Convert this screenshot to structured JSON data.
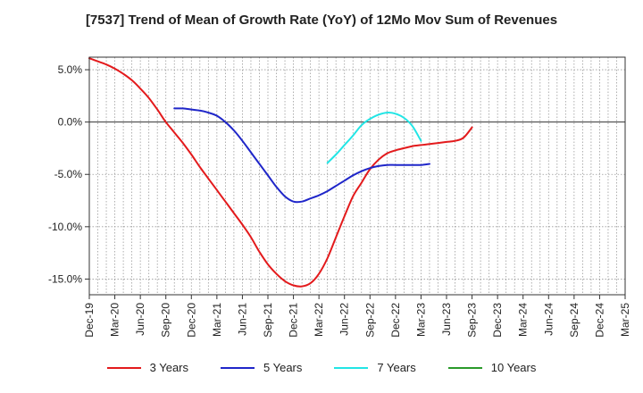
{
  "chart_data": {
    "type": "line",
    "title": "[7537]  Trend of Mean of Growth Rate (YoY) of 12Mo Mov Sum of Revenues",
    "xlabel": "",
    "ylabel": "",
    "x_ticks": [
      "Dec-19",
      "Mar-20",
      "Jun-20",
      "Sep-20",
      "Dec-20",
      "Mar-21",
      "Jun-21",
      "Sep-21",
      "Dec-21",
      "Mar-22",
      "Jun-22",
      "Sep-22",
      "Dec-22",
      "Mar-23",
      "Jun-23",
      "Sep-23",
      "Dec-23",
      "Mar-24",
      "Jun-24",
      "Sep-24",
      "Dec-24",
      "Mar-25"
    ],
    "y_ticks": [
      "5.0%",
      "0.0%",
      "-5.0%",
      "-10.0%",
      "-15.0%"
    ],
    "y_tick_values": [
      5,
      0,
      -5,
      -10,
      -15
    ],
    "ylim": [
      -16.5,
      6.2
    ],
    "grid": true,
    "legend_position": "bottom",
    "series": [
      {
        "name": "3 Years",
        "color": "#e31a1c",
        "start_index": 0,
        "values": [
          6.1,
          5.8,
          5.5,
          5.1,
          4.6,
          4.0,
          3.2,
          2.3,
          1.2,
          0.0,
          -1.0,
          -2.0,
          -3.1,
          -4.3,
          -5.4,
          -6.5,
          -7.6,
          -8.7,
          -9.8,
          -11.0,
          -12.4,
          -13.6,
          -14.5,
          -15.2,
          -15.6,
          -15.7,
          -15.4,
          -14.5,
          -13.0,
          -11.0,
          -9.0,
          -7.1,
          -5.8,
          -4.5,
          -3.6,
          -3.0,
          -2.7,
          -2.5,
          -2.3,
          -2.2,
          -2.1,
          -2.0,
          -1.9,
          -1.8,
          -1.5,
          -0.5
        ]
      },
      {
        "name": "5 Years",
        "color": "#1f26c9",
        "start_index": 10,
        "values": [
          1.3,
          1.3,
          1.2,
          1.1,
          0.9,
          0.6,
          0.0,
          -0.8,
          -1.8,
          -2.9,
          -4.0,
          -5.1,
          -6.2,
          -7.1,
          -7.6,
          -7.6,
          -7.3,
          -7.0,
          -6.6,
          -6.1,
          -5.6,
          -5.1,
          -4.7,
          -4.4,
          -4.2,
          -4.1,
          -4.1,
          -4.1,
          -4.1,
          -4.1,
          -4.0
        ]
      },
      {
        "name": "7 Years",
        "color": "#22e5e5",
        "start_index": 28,
        "values": [
          -3.9,
          -3.1,
          -2.2,
          -1.3,
          -0.3,
          0.3,
          0.7,
          0.9,
          0.8,
          0.4,
          -0.4,
          -1.8
        ]
      },
      {
        "name": "10 Years",
        "color": "#2a9a2a",
        "start_index": 0,
        "values": []
      }
    ]
  }
}
